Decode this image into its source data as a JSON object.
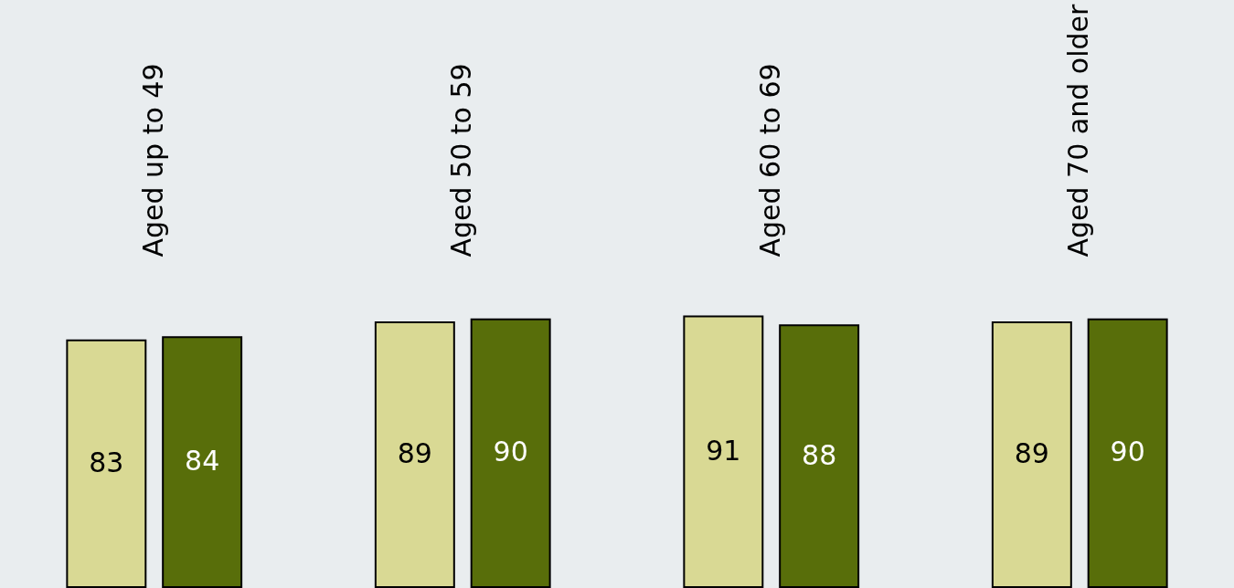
{
  "chart_data": {
    "type": "bar",
    "categories": [
      "Aged up to 49",
      "Aged 50 to 59",
      "Aged 60 to 69",
      "Aged 70 and older"
    ],
    "series": [
      {
        "color": "#d9d994",
        "values": [
          83,
          89,
          91,
          89
        ]
      },
      {
        "color": "#586e0a",
        "values": [
          84,
          90,
          88,
          90
        ]
      }
    ],
    "data_labels": true
  }
}
